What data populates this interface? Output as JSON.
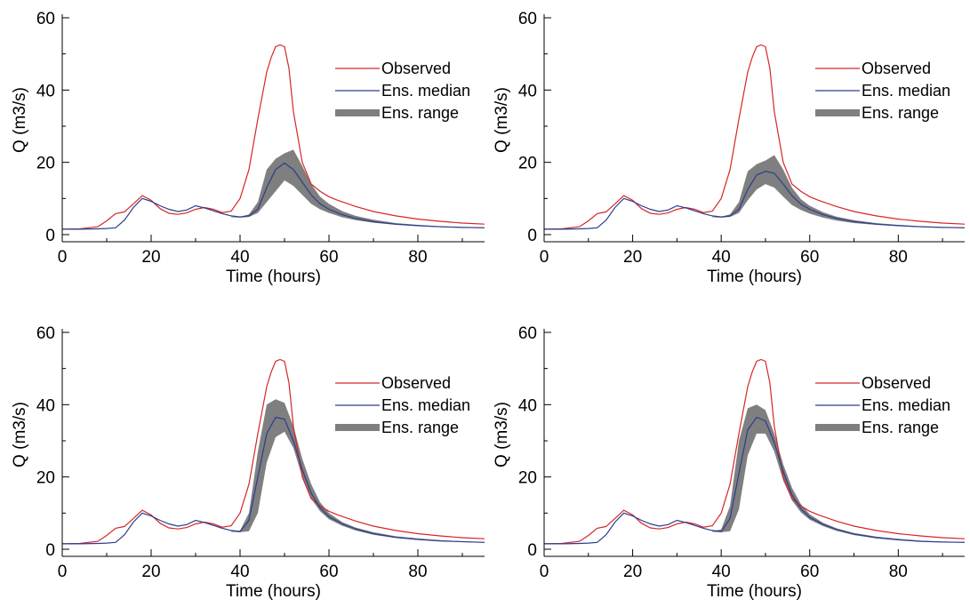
{
  "chart_data": [
    {
      "type": "line",
      "xlabel": "Time (hours)",
      "ylabel": "Q (m3/s)",
      "xlim": [
        0,
        95
      ],
      "ylim": [
        0,
        60
      ],
      "xticks": [
        "0",
        "20",
        "40",
        "60",
        "80"
      ],
      "yticks": [
        "0",
        "20",
        "40",
        "60"
      ],
      "legend_position": "top-right",
      "series": [
        {
          "name": "Observed",
          "color": "#d62728",
          "x": [
            0,
            4,
            8,
            10,
            12,
            14,
            16,
            18,
            20,
            22,
            24,
            26,
            28,
            30,
            32,
            34,
            36,
            38,
            40,
            42,
            44,
            46,
            47,
            48,
            49,
            50,
            51,
            52,
            54,
            56,
            58,
            60,
            62,
            66,
            70,
            75,
            80,
            85,
            90,
            95
          ],
          "y": [
            1.5,
            1.6,
            2.2,
            3.8,
            5.8,
            6.3,
            8.5,
            10.8,
            9.5,
            7.2,
            5.9,
            5.6,
            6.0,
            7.0,
            7.5,
            7.0,
            6.1,
            6.5,
            10.0,
            18.0,
            32.0,
            45.0,
            49.0,
            52.0,
            52.5,
            52.0,
            46.0,
            34.0,
            20.0,
            14.0,
            12.0,
            10.5,
            9.5,
            7.8,
            6.4,
            5.2,
            4.3,
            3.7,
            3.2,
            2.9
          ]
        },
        {
          "name": "Ens. median",
          "color": "#2a3f8f",
          "x": [
            0,
            4,
            8,
            10,
            12,
            14,
            16,
            18,
            20,
            22,
            24,
            26,
            28,
            30,
            32,
            34,
            36,
            38,
            40,
            42,
            44,
            46,
            48,
            50,
            52,
            54,
            56,
            58,
            60,
            63,
            66,
            70,
            75,
            80,
            85,
            90,
            95
          ],
          "y": [
            1.5,
            1.5,
            1.6,
            1.7,
            1.9,
            4.0,
            7.5,
            10.0,
            9.2,
            8.0,
            7.0,
            6.4,
            6.8,
            8.0,
            7.4,
            6.6,
            5.8,
            5.2,
            4.9,
            5.2,
            7.0,
            13.0,
            18.0,
            19.8,
            18.0,
            14.5,
            11.0,
            8.5,
            7.0,
            5.5,
            4.5,
            3.6,
            2.9,
            2.5,
            2.2,
            2.0,
            1.9
          ]
        },
        {
          "name": "Ens. range",
          "color": "#7f7f7f",
          "x": [
            38,
            40,
            42,
            44,
            46,
            48,
            50,
            52,
            54,
            56,
            58,
            60,
            63,
            66,
            70,
            75,
            80,
            85,
            90,
            95
          ],
          "low": [
            4.8,
            4.7,
            4.9,
            6.0,
            9.0,
            12.0,
            15.0,
            13.5,
            11.0,
            8.5,
            7.0,
            6.0,
            4.8,
            4.0,
            3.3,
            2.7,
            2.3,
            2.1,
            1.9,
            1.8
          ],
          "high": [
            5.0,
            5.0,
            5.6,
            9.0,
            18.0,
            21.0,
            22.5,
            23.5,
            19.0,
            14.0,
            10.5,
            8.5,
            6.5,
            5.2,
            4.1,
            3.2,
            2.7,
            2.3,
            2.1,
            2.0
          ]
        }
      ]
    },
    {
      "type": "line",
      "xlabel": "Time (hours)",
      "ylabel": "Q (m3/s)",
      "xlim": [
        0,
        95
      ],
      "ylim": [
        0,
        60
      ],
      "xticks": [
        "0",
        "20",
        "40",
        "60",
        "80"
      ],
      "yticks": [
        "0",
        "20",
        "40",
        "60"
      ],
      "legend_position": "top-right",
      "series": [
        {
          "name": "Observed",
          "color": "#d62728",
          "x": [
            0,
            4,
            8,
            10,
            12,
            14,
            16,
            18,
            20,
            22,
            24,
            26,
            28,
            30,
            32,
            34,
            36,
            38,
            40,
            42,
            44,
            46,
            47,
            48,
            49,
            50,
            51,
            52,
            54,
            56,
            58,
            60,
            62,
            66,
            70,
            75,
            80,
            85,
            90,
            95
          ],
          "y": [
            1.5,
            1.6,
            2.2,
            3.8,
            5.8,
            6.3,
            8.5,
            10.8,
            9.5,
            7.2,
            5.9,
            5.6,
            6.0,
            7.0,
            7.5,
            7.0,
            6.1,
            6.5,
            10.0,
            18.0,
            32.0,
            45.0,
            49.0,
            52.0,
            52.5,
            52.0,
            46.0,
            34.0,
            20.0,
            14.0,
            12.0,
            10.5,
            9.5,
            7.8,
            6.4,
            5.2,
            4.3,
            3.7,
            3.2,
            2.9
          ]
        },
        {
          "name": "Ens. median",
          "color": "#2a3f8f",
          "x": [
            0,
            4,
            8,
            10,
            12,
            14,
            16,
            18,
            20,
            22,
            24,
            26,
            28,
            30,
            32,
            34,
            36,
            38,
            40,
            42,
            44,
            46,
            48,
            50,
            52,
            54,
            56,
            58,
            60,
            63,
            66,
            70,
            75,
            80,
            85,
            90,
            95
          ],
          "y": [
            1.5,
            1.5,
            1.6,
            1.7,
            1.9,
            4.0,
            7.5,
            10.0,
            9.2,
            8.0,
            7.0,
            6.4,
            6.8,
            8.0,
            7.4,
            6.6,
            5.8,
            5.2,
            4.9,
            5.2,
            7.0,
            12.5,
            16.5,
            17.5,
            17.0,
            14.0,
            10.8,
            8.4,
            7.0,
            5.5,
            4.5,
            3.6,
            2.9,
            2.5,
            2.2,
            2.0,
            1.9
          ]
        },
        {
          "name": "Ens. range",
          "color": "#7f7f7f",
          "x": [
            38,
            40,
            42,
            44,
            46,
            48,
            50,
            52,
            54,
            56,
            58,
            60,
            63,
            66,
            70,
            75,
            80,
            85,
            90,
            95
          ],
          "low": [
            4.8,
            4.7,
            4.9,
            6.0,
            9.5,
            12.5,
            14.0,
            13.0,
            10.5,
            8.2,
            6.8,
            5.8,
            4.7,
            3.9,
            3.2,
            2.7,
            2.3,
            2.1,
            1.9,
            1.8
          ],
          "high": [
            5.0,
            5.0,
            5.6,
            9.0,
            17.5,
            19.5,
            20.5,
            22.0,
            18.0,
            13.0,
            9.8,
            8.0,
            6.2,
            5.0,
            4.0,
            3.2,
            2.7,
            2.3,
            2.1,
            2.0
          ]
        }
      ]
    },
    {
      "type": "line",
      "xlabel": "Time (hours)",
      "ylabel": "Q (m3/s)",
      "xlim": [
        0,
        95
      ],
      "ylim": [
        0,
        60
      ],
      "xticks": [
        "0",
        "20",
        "40",
        "60",
        "80"
      ],
      "yticks": [
        "0",
        "20",
        "40",
        "60"
      ],
      "legend_position": "top-right",
      "series": [
        {
          "name": "Observed",
          "color": "#d62728",
          "x": [
            0,
            4,
            8,
            10,
            12,
            14,
            16,
            18,
            20,
            22,
            24,
            26,
            28,
            30,
            32,
            34,
            36,
            38,
            40,
            42,
            44,
            46,
            47,
            48,
            49,
            50,
            51,
            52,
            54,
            56,
            58,
            60,
            62,
            66,
            70,
            75,
            80,
            85,
            90,
            95
          ],
          "y": [
            1.5,
            1.6,
            2.2,
            3.8,
            5.8,
            6.3,
            8.5,
            10.8,
            9.5,
            7.2,
            5.9,
            5.6,
            6.0,
            7.0,
            7.5,
            7.0,
            6.1,
            6.5,
            10.0,
            18.0,
            32.0,
            45.0,
            49.0,
            52.0,
            52.5,
            52.0,
            46.0,
            34.0,
            20.0,
            14.0,
            12.0,
            10.5,
            9.5,
            7.8,
            6.4,
            5.2,
            4.3,
            3.7,
            3.2,
            2.9
          ]
        },
        {
          "name": "Ens. median",
          "color": "#2a3f8f",
          "x": [
            0,
            4,
            8,
            10,
            12,
            14,
            16,
            18,
            20,
            22,
            24,
            26,
            28,
            30,
            32,
            34,
            36,
            38,
            40,
            42,
            44,
            46,
            48,
            50,
            52,
            54,
            56,
            58,
            60,
            63,
            66,
            70,
            75,
            80,
            85,
            90,
            95
          ],
          "y": [
            1.5,
            1.5,
            1.6,
            1.7,
            1.9,
            4.0,
            7.5,
            10.0,
            9.2,
            8.0,
            7.0,
            6.4,
            6.8,
            8.0,
            7.4,
            6.6,
            5.8,
            5.2,
            4.9,
            8.0,
            20.0,
            32.0,
            36.5,
            36.0,
            30.0,
            22.0,
            15.5,
            11.5,
            9.0,
            7.0,
            5.6,
            4.3,
            3.3,
            2.7,
            2.3,
            2.1,
            1.9
          ]
        },
        {
          "name": "Ens. range",
          "color": "#7f7f7f",
          "x": [
            38,
            40,
            42,
            44,
            46,
            48,
            50,
            52,
            54,
            56,
            58,
            60,
            63,
            66,
            70,
            75,
            80,
            85,
            90,
            95
          ],
          "low": [
            4.8,
            4.7,
            5.0,
            10.0,
            24.0,
            31.0,
            32.5,
            28.0,
            20.0,
            14.0,
            10.5,
            8.3,
            6.5,
            5.2,
            4.0,
            3.1,
            2.6,
            2.2,
            2.0,
            1.8
          ],
          "high": [
            5.0,
            5.2,
            10.0,
            27.0,
            40.0,
            41.5,
            40.5,
            34.0,
            25.0,
            18.0,
            13.0,
            10.0,
            7.5,
            6.0,
            4.7,
            3.6,
            3.0,
            2.5,
            2.2,
            2.0
          ]
        }
      ]
    },
    {
      "type": "line",
      "xlabel": "Time (hours)",
      "ylabel": "Q (m3/s)",
      "xlim": [
        0,
        95
      ],
      "ylim": [
        0,
        60
      ],
      "xticks": [
        "0",
        "20",
        "40",
        "60",
        "80"
      ],
      "yticks": [
        "0",
        "20",
        "40",
        "60"
      ],
      "legend_position": "top-right",
      "series": [
        {
          "name": "Observed",
          "color": "#d62728",
          "x": [
            0,
            4,
            8,
            10,
            12,
            14,
            16,
            18,
            20,
            22,
            24,
            26,
            28,
            30,
            32,
            34,
            36,
            38,
            40,
            42,
            44,
            46,
            47,
            48,
            49,
            50,
            51,
            52,
            54,
            56,
            58,
            60,
            62,
            66,
            70,
            75,
            80,
            85,
            90,
            95
          ],
          "y": [
            1.5,
            1.6,
            2.2,
            3.8,
            5.8,
            6.3,
            8.5,
            10.8,
            9.5,
            7.2,
            5.9,
            5.6,
            6.0,
            7.0,
            7.5,
            7.0,
            6.1,
            6.5,
            10.0,
            18.0,
            32.0,
            45.0,
            49.0,
            52.0,
            52.5,
            52.0,
            46.0,
            34.0,
            20.0,
            14.0,
            12.0,
            10.5,
            9.5,
            7.8,
            6.4,
            5.2,
            4.3,
            3.7,
            3.2,
            2.9
          ]
        },
        {
          "name": "Ens. median",
          "color": "#2a3f8f",
          "x": [
            0,
            4,
            8,
            10,
            12,
            14,
            16,
            18,
            20,
            22,
            24,
            26,
            28,
            30,
            32,
            34,
            36,
            38,
            40,
            42,
            44,
            46,
            48,
            50,
            52,
            54,
            56,
            58,
            60,
            63,
            66,
            70,
            75,
            80,
            85,
            90,
            95
          ],
          "y": [
            1.5,
            1.5,
            1.6,
            1.7,
            1.9,
            4.0,
            7.5,
            10.0,
            9.2,
            8.0,
            7.0,
            6.4,
            6.8,
            8.0,
            7.4,
            6.6,
            5.8,
            5.2,
            4.9,
            8.5,
            21.0,
            33.0,
            36.5,
            35.5,
            29.5,
            21.5,
            15.0,
            11.2,
            8.8,
            6.9,
            5.5,
            4.2,
            3.2,
            2.6,
            2.2,
            2.0,
            1.9
          ]
        },
        {
          "name": "Ens. range",
          "color": "#7f7f7f",
          "x": [
            38,
            40,
            42,
            44,
            46,
            48,
            50,
            52,
            54,
            56,
            58,
            60,
            63,
            66,
            70,
            75,
            80,
            85,
            90,
            95
          ],
          "low": [
            4.8,
            4.7,
            5.0,
            11.0,
            26.0,
            32.0,
            32.0,
            27.0,
            19.0,
            13.5,
            10.2,
            8.2,
            6.4,
            5.1,
            3.9,
            3.0,
            2.5,
            2.2,
            2.0,
            1.8
          ],
          "high": [
            5.0,
            5.5,
            12.0,
            30.0,
            39.0,
            40.0,
            38.5,
            32.0,
            23.5,
            17.0,
            12.5,
            9.7,
            7.3,
            5.8,
            4.5,
            3.5,
            2.9,
            2.4,
            2.1,
            2.0
          ]
        }
      ]
    }
  ]
}
